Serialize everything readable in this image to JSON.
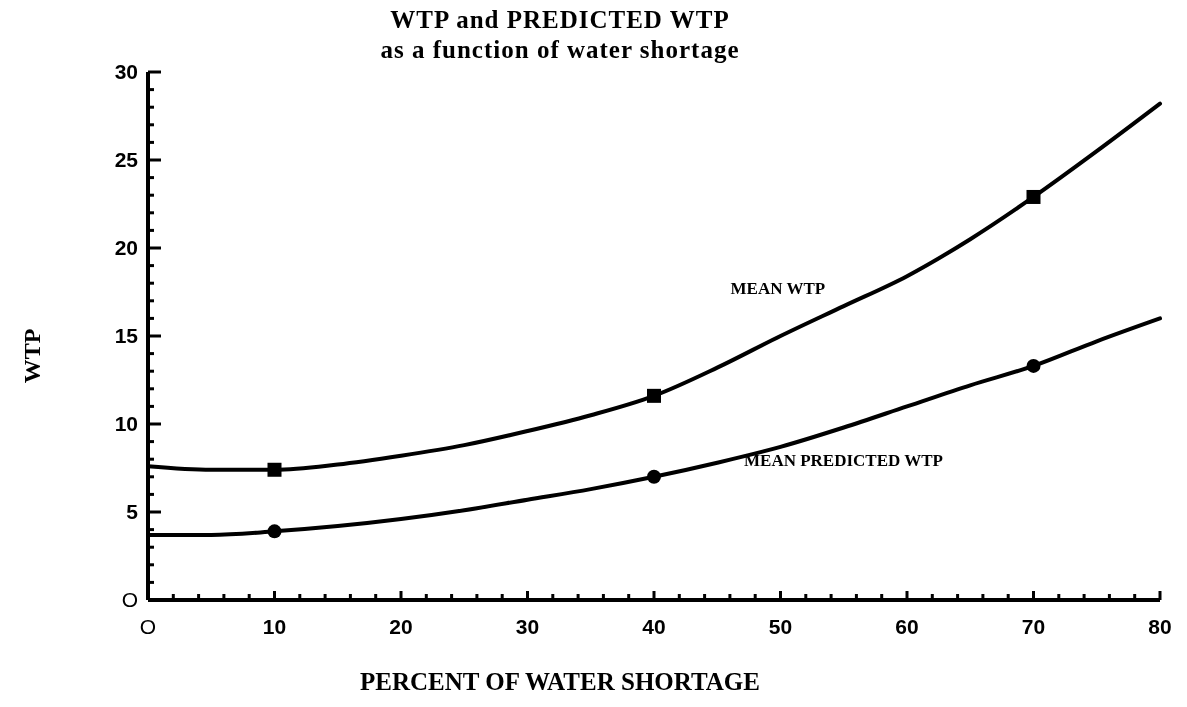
{
  "chart_data": {
    "type": "line",
    "title": "WTP and PREDICTED WTP",
    "subtitle": "as a function of water shortage",
    "xlabel": "PERCENT OF WATER SHORTAGE",
    "ylabel": "WTP",
    "xlim": [
      0,
      80
    ],
    "ylim": [
      0,
      30
    ],
    "xticks": [
      {
        "value": 0,
        "label": "O"
      },
      {
        "value": 2,
        "label": null
      },
      {
        "value": 4,
        "label": null
      },
      {
        "value": 6,
        "label": null
      },
      {
        "value": 8,
        "label": null
      },
      10,
      {
        "value": 12,
        "label": null
      },
      {
        "value": 14,
        "label": null
      },
      {
        "value": 16,
        "label": null
      },
      {
        "value": 18,
        "label": null
      },
      20,
      {
        "value": 22,
        "label": null
      },
      {
        "value": 24,
        "label": null
      },
      {
        "value": 26,
        "label": null
      },
      {
        "value": 28,
        "label": null
      },
      30,
      {
        "value": 32,
        "label": null
      },
      {
        "value": 34,
        "label": null
      },
      {
        "value": 36,
        "label": null
      },
      {
        "value": 38,
        "label": null
      },
      40,
      {
        "value": 42,
        "label": null
      },
      {
        "value": 44,
        "label": null
      },
      {
        "value": 46,
        "label": null
      },
      {
        "value": 48,
        "label": null
      },
      50,
      {
        "value": 52,
        "label": null
      },
      {
        "value": 54,
        "label": null
      },
      {
        "value": 56,
        "label": null
      },
      {
        "value": 58,
        "label": null
      },
      60,
      {
        "value": 62,
        "label": null
      },
      {
        "value": 64,
        "label": null
      },
      {
        "value": 66,
        "label": null
      },
      {
        "value": 68,
        "label": null
      },
      70,
      {
        "value": 72,
        "label": null
      },
      {
        "value": 74,
        "label": null
      },
      {
        "value": 76,
        "label": null
      },
      {
        "value": 78,
        "label": null
      },
      80
    ],
    "yticks": [
      {
        "value": 0,
        "label": "O"
      },
      {
        "value": 1,
        "label": null
      },
      {
        "value": 2,
        "label": null
      },
      {
        "value": 3,
        "label": null
      },
      {
        "value": 4,
        "label": null
      },
      5,
      {
        "value": 6,
        "label": null
      },
      {
        "value": 7,
        "label": null
      },
      {
        "value": 8,
        "label": null
      },
      {
        "value": 9,
        "label": null
      },
      10,
      {
        "value": 11,
        "label": null
      },
      {
        "value": 12,
        "label": null
      },
      {
        "value": 13,
        "label": null
      },
      {
        "value": 14,
        "label": null
      },
      15,
      {
        "value": 16,
        "label": null
      },
      {
        "value": 17,
        "label": null
      },
      {
        "value": 18,
        "label": null
      },
      {
        "value": 19,
        "label": null
      },
      20,
      {
        "value": 21,
        "label": null
      },
      {
        "value": 22,
        "label": null
      },
      {
        "value": 23,
        "label": null
      },
      {
        "value": 24,
        "label": null
      },
      25,
      {
        "value": 26,
        "label": null
      },
      {
        "value": 27,
        "label": null
      },
      {
        "value": 28,
        "label": null
      },
      {
        "value": 29,
        "label": null
      },
      30
    ],
    "grid": false,
    "line_style": "solid",
    "series": [
      {
        "name": "MEAN WTP",
        "color": "#000000",
        "marker": "none",
        "x": [
          0,
          5,
          10,
          15,
          20,
          25,
          30,
          35,
          40,
          45,
          50,
          55,
          60,
          65,
          70,
          75,
          80
        ],
        "values": [
          7.6,
          7.4,
          7.4,
          7.7,
          8.2,
          8.8,
          9.6,
          10.5,
          11.6,
          13.2,
          15.0,
          16.7,
          18.4,
          20.5,
          22.9,
          25.5,
          28.2
        ]
      },
      {
        "name": "MEAN PREDICTED WTP",
        "color": "#000000",
        "marker": "none",
        "x": [
          0,
          5,
          10,
          15,
          20,
          25,
          30,
          35,
          40,
          45,
          50,
          55,
          60,
          65,
          70,
          75,
          80
        ],
        "values": [
          3.7,
          3.7,
          3.9,
          4.2,
          4.6,
          5.1,
          5.7,
          6.3,
          7.0,
          7.8,
          8.7,
          9.8,
          11.0,
          12.2,
          13.3,
          14.7,
          16.0
        ]
      },
      {
        "type": "scatter",
        "color": "#000000",
        "marker": "square",
        "x": [
          10,
          40,
          70
        ],
        "values": [
          7.4,
          11.6,
          22.9
        ]
      },
      {
        "type": "scatter",
        "color": "#000000",
        "marker": "circle",
        "x": [
          10,
          40,
          70
        ],
        "values": [
          3.9,
          7.0,
          13.3
        ]
      }
    ]
  }
}
